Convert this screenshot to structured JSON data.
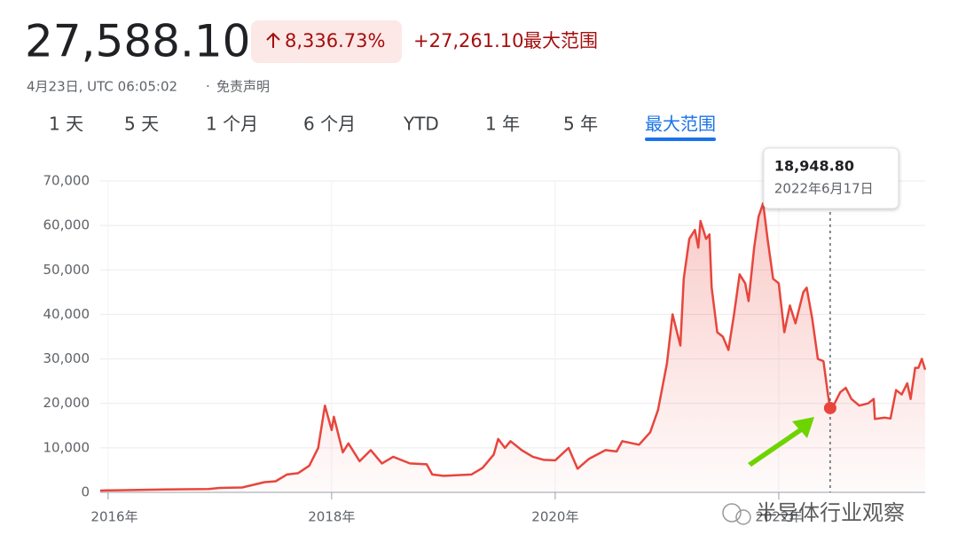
{
  "header": {
    "price": "27,588.10",
    "change_pct": "8,336.73%",
    "change_abs": "+27,261.10",
    "range_label": "最大范围",
    "timestamp": "4月23日, UTC 06:05:02",
    "separator": "·",
    "disclaimer": "免责声明"
  },
  "tabs": {
    "items": [
      "1 天",
      "5 天",
      "1 个月",
      "6 个月",
      "YTD",
      "1 年",
      "5 年",
      "最大范围"
    ],
    "active": 7
  },
  "watermark": "半导体行业观察",
  "chart_data": {
    "type": "line",
    "color": "#e8453c",
    "grid": true,
    "x": [
      2015.93,
      2016.0,
      2016.5,
      2016.9,
      2017.0,
      2017.2,
      2017.4,
      2017.5,
      2017.6,
      2017.7,
      2017.8,
      2017.88,
      2017.94,
      2018.0,
      2018.02,
      2018.1,
      2018.15,
      2018.25,
      2018.35,
      2018.45,
      2018.55,
      2018.7,
      2018.85,
      2018.9,
      2019.0,
      2019.25,
      2019.35,
      2019.45,
      2019.49,
      2019.55,
      2019.6,
      2019.7,
      2019.8,
      2019.9,
      2020.0,
      2020.12,
      2020.2,
      2020.3,
      2020.45,
      2020.55,
      2020.6,
      2020.75,
      2020.85,
      2020.92,
      2021.0,
      2021.05,
      2021.12,
      2021.15,
      2021.2,
      2021.25,
      2021.28,
      2021.3,
      2021.35,
      2021.38,
      2021.4,
      2021.45,
      2021.5,
      2021.55,
      2021.6,
      2021.65,
      2021.7,
      2021.73,
      2021.78,
      2021.82,
      2021.86,
      2021.9,
      2021.95,
      2022.0,
      2022.05,
      2022.1,
      2022.15,
      2022.22,
      2022.25,
      2022.3,
      2022.35,
      2022.4,
      2022.44,
      2022.46,
      2022.5,
      2022.55,
      2022.6,
      2022.65,
      2022.72,
      2022.8,
      2022.85,
      2022.86,
      2022.95,
      2023.0,
      2023.05,
      2023.1,
      2023.15,
      2023.18,
      2023.22,
      2023.25,
      2023.28,
      2023.31
    ],
    "series": [
      {
        "name": "Price",
        "values": [
          400,
          430,
          650,
          750,
          1000,
          1100,
          2300,
          2500,
          4000,
          4300,
          6000,
          10000,
          19500,
          14000,
          17000,
          9000,
          11000,
          7000,
          9500,
          6500,
          8000,
          6500,
          6300,
          4000,
          3700,
          4000,
          5500,
          8500,
          12000,
          10000,
          11500,
          9500,
          8000,
          7300,
          7200,
          10000,
          5300,
          7500,
          9500,
          9200,
          11500,
          10700,
          13500,
          18500,
          29000,
          40000,
          33000,
          48000,
          57000,
          59000,
          55000,
          61000,
          57000,
          58000,
          46000,
          36000,
          35000,
          32000,
          40000,
          49000,
          47000,
          43000,
          55000,
          62000,
          65000,
          57000,
          48000,
          47000,
          36000,
          42000,
          38000,
          45000,
          46000,
          39000,
          30000,
          29500,
          22000,
          18948.8,
          20000,
          22500,
          23500,
          21000,
          19500,
          20000,
          21000,
          16500,
          16800,
          16600,
          23000,
          22000,
          24500,
          21000,
          28000,
          28000,
          30000,
          27588.1
        ]
      }
    ],
    "xlim": [
      2015.93,
      2023.31
    ],
    "xticks": [
      {
        "value": 2016,
        "label": "2016年"
      },
      {
        "value": 2018,
        "label": "2018年"
      },
      {
        "value": 2020,
        "label": "2020年"
      },
      {
        "value": 2022,
        "label": "2022年"
      }
    ],
    "ylim": [
      0,
      70000
    ],
    "yticks": [
      0,
      {
        "value": 10000,
        "label": "10,000"
      },
      {
        "value": 20000,
        "label": "20,000"
      },
      {
        "value": 30000,
        "label": "30,000"
      },
      {
        "value": 40000,
        "label": "40,000"
      },
      {
        "value": 50000,
        "label": "50,000"
      },
      {
        "value": 60000,
        "label": "60,000"
      },
      {
        "value": 70000,
        "label": "70,000"
      }
    ],
    "tooltip": {
      "x": 2022.46,
      "value": 18948.8,
      "value_label": "18,948.80",
      "date": "2022年6月17日"
    }
  }
}
